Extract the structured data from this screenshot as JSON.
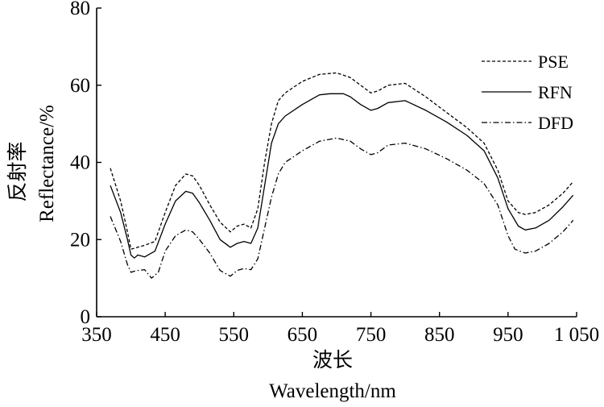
{
  "chart_data": {
    "type": "line",
    "title": "",
    "xlabel_cn": "波长",
    "xlabel": "Wavelength/nm",
    "ylabel_cn": "反射率",
    "ylabel": "Reflectance/%",
    "xlim": [
      350,
      1050
    ],
    "ylim": [
      0,
      80
    ],
    "x_ticks": [
      350,
      450,
      550,
      650,
      750,
      850,
      950,
      1050
    ],
    "x_tick_labels": [
      "350",
      "450",
      "550",
      "650",
      "750",
      "850",
      "950",
      "1 050"
    ],
    "y_ticks": [
      0,
      20,
      40,
      60,
      80
    ],
    "y_tick_labels": [
      "0",
      "20",
      "40",
      "60",
      "80"
    ],
    "grid": false,
    "legend_position": "top-right",
    "series": [
      {
        "name": "PSE",
        "style": "dashed",
        "x": [
          370,
          385,
          395,
          400,
          410,
          420,
          435,
          450,
          465,
          480,
          490,
          500,
          515,
          530,
          545,
          555,
          565,
          575,
          585,
          595,
          605,
          615,
          625,
          650,
          675,
          700,
          720,
          735,
          750,
          760,
          775,
          800,
          830,
          860,
          890,
          915,
          935,
          950,
          965,
          975,
          990,
          1010,
          1030,
          1045
        ],
        "y": [
          38.5,
          30,
          22,
          17.5,
          18,
          18.5,
          19.5,
          27,
          34,
          37,
          36.5,
          34,
          29,
          24.5,
          22,
          23.5,
          24,
          23,
          28,
          40,
          50,
          56,
          58,
          61,
          62.8,
          63.2,
          62,
          60,
          58,
          58.5,
          60,
          60.5,
          57,
          53,
          49,
          45,
          38,
          30,
          27,
          26.5,
          27,
          29,
          32,
          35
        ]
      },
      {
        "name": "RFN",
        "style": "solid",
        "x": [
          370,
          385,
          395,
          400,
          405,
          410,
          420,
          435,
          450,
          465,
          480,
          490,
          500,
          515,
          530,
          545,
          555,
          565,
          575,
          585,
          595,
          605,
          615,
          625,
          650,
          675,
          690,
          710,
          720,
          735,
          750,
          760,
          775,
          800,
          830,
          860,
          890,
          915,
          935,
          950,
          965,
          975,
          990,
          1010,
          1030,
          1045
        ],
        "y": [
          34,
          27,
          20,
          16,
          15.2,
          16,
          15.5,
          17,
          24,
          30,
          32.5,
          32,
          29.5,
          25,
          20,
          18,
          19,
          19.5,
          19,
          23,
          34,
          45,
          50,
          52,
          55,
          57.5,
          57.8,
          57.8,
          57,
          55,
          53.5,
          54,
          55.5,
          56,
          53.5,
          50.5,
          47,
          43,
          36,
          28,
          23.5,
          22.5,
          23,
          25,
          28.5,
          31.5
        ]
      },
      {
        "name": "DFD",
        "style": "dashdot",
        "x": [
          370,
          385,
          395,
          400,
          405,
          410,
          420,
          430,
          440,
          450,
          465,
          480,
          490,
          500,
          515,
          530,
          545,
          555,
          565,
          575,
          585,
          595,
          605,
          615,
          625,
          650,
          675,
          700,
          720,
          735,
          750,
          760,
          775,
          800,
          830,
          860,
          890,
          915,
          935,
          950,
          960,
          975,
          990,
          1010,
          1030,
          1045
        ],
        "y": [
          26,
          19.5,
          13.5,
          11.5,
          11.8,
          12,
          12.2,
          10,
          11.5,
          17,
          21,
          22.5,
          22,
          20,
          16.5,
          12,
          10.5,
          12,
          12.5,
          12.2,
          15,
          23,
          31,
          37,
          40,
          43,
          45.5,
          46.3,
          45.5,
          43.5,
          42,
          42.5,
          44.5,
          45,
          43.5,
          41,
          38,
          34.5,
          29,
          21,
          17.5,
          16.5,
          17,
          19,
          22,
          25
        ]
      }
    ]
  }
}
